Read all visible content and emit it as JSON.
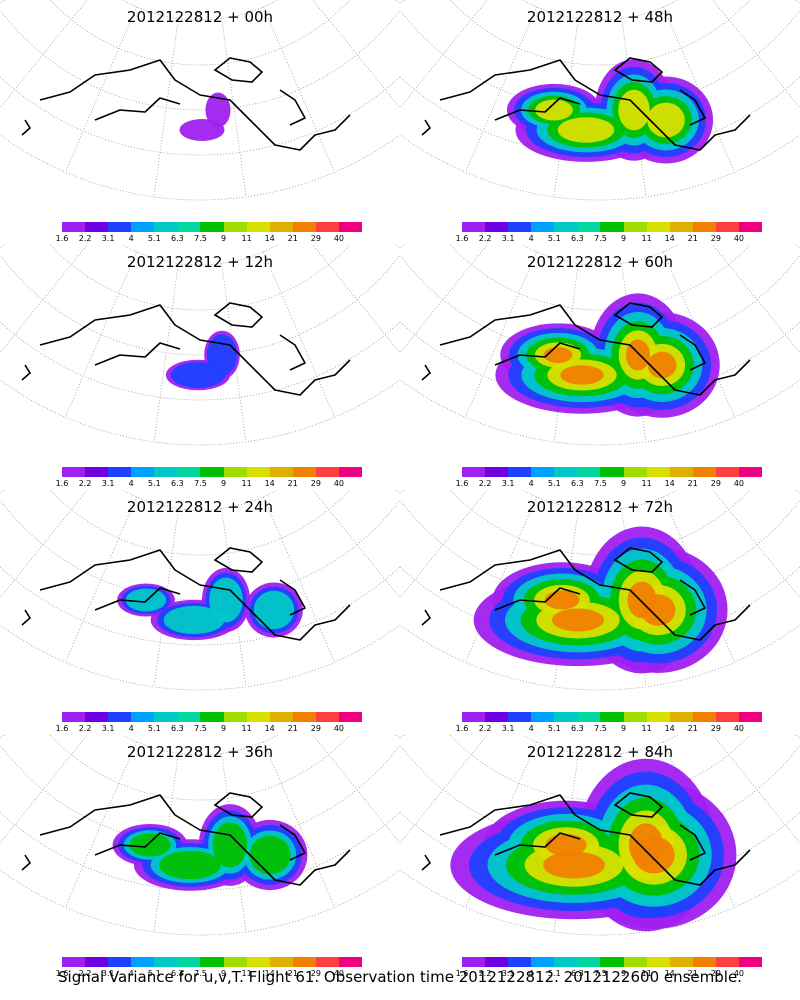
{
  "colorbar": {
    "colors": [
      "#a020f0",
      "#7000e0",
      "#2040ff",
      "#00a0ff",
      "#00c8c8",
      "#00d8a0",
      "#00c000",
      "#a0dc00",
      "#d8e000",
      "#e0b000",
      "#f08000",
      "#ff4040",
      "#f00080"
    ],
    "labels": [
      "1.6",
      "2.2",
      "3.1",
      "4",
      "5.1",
      "6.3",
      "7.5",
      "9",
      "11",
      "14",
      "21",
      "29",
      "40"
    ]
  },
  "panels": [
    {
      "title": "2012122812 + 00h"
    },
    {
      "title": "2012122812 + 48h"
    },
    {
      "title": "2012122812 + 12h"
    },
    {
      "title": "2012122812 + 60h"
    },
    {
      "title": "2012122812 + 24h"
    },
    {
      "title": "2012122812 + 72h"
    },
    {
      "title": "2012122812 + 36h"
    },
    {
      "title": "2012122812 + 84h"
    }
  ],
  "footer": "Signal Variance for u,v,T. Flight 61. Observation time 2012122812. 2012122600 ensemble."
}
